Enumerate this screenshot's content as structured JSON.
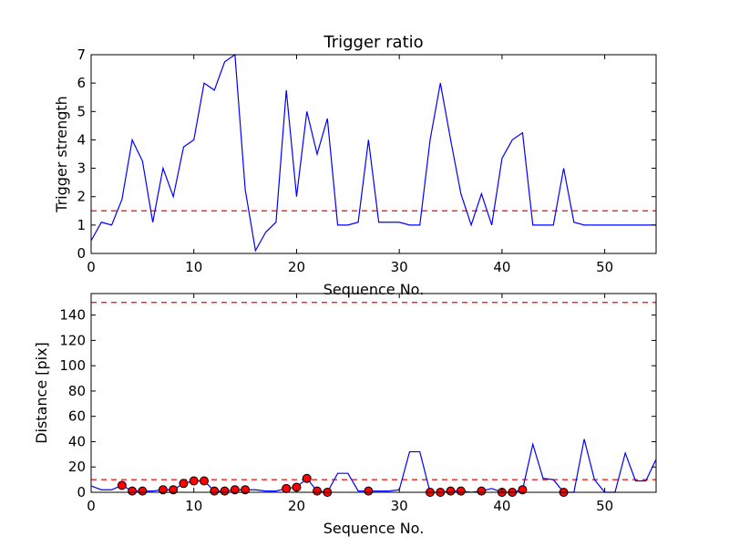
{
  "chart_data": [
    {
      "type": "line",
      "title": "Trigger ratio",
      "xlabel": "Sequence No.",
      "ylabel": "Trigger strength",
      "xlim": [
        0,
        55
      ],
      "ylim": [
        0,
        7
      ],
      "xticks": [
        0,
        10,
        20,
        30,
        40,
        50
      ],
      "yticks": [
        0,
        1,
        2,
        3,
        4,
        5,
        6,
        7
      ],
      "grid": false,
      "colors": {
        "series": "#0000ff",
        "threshold": "#ff0000"
      },
      "series": [
        {
          "x": [
            0,
            1,
            2,
            3,
            4,
            5,
            6,
            7,
            8,
            9,
            10,
            11,
            12,
            13,
            14,
            15,
            16,
            17,
            18,
            19,
            20,
            21,
            22,
            23,
            24,
            25,
            26,
            27,
            28,
            29,
            30,
            31,
            32,
            33,
            34,
            35,
            36,
            37,
            38,
            39,
            40,
            41,
            42,
            43,
            44,
            45,
            46,
            47,
            48,
            49,
            50,
            51,
            52,
            53,
            54,
            55
          ],
          "values": [
            0.45,
            1.1,
            1.0,
            1.9,
            4.0,
            3.25,
            1.1,
            3.0,
            2.0,
            3.75,
            4.0,
            6.0,
            5.75,
            6.75,
            7.0,
            2.25,
            0.1,
            0.75,
            1.1,
            5.75,
            2.0,
            5.0,
            3.5,
            4.75,
            1.0,
            1.0,
            1.1,
            4.0,
            1.1,
            1.1,
            1.1,
            1.0,
            1.0,
            4.0,
            6.0,
            4.0,
            2.1,
            1.0,
            2.1,
            1.0,
            3.35,
            4.0,
            4.25,
            1.0,
            1.0,
            1.0,
            3.0,
            1.1,
            1.0,
            1.0,
            1.0,
            1.0,
            1.0,
            1.0,
            1.0,
            1.0
          ]
        }
      ],
      "threshold": 1.5
    },
    {
      "type": "line",
      "title": "",
      "xlabel": "Sequence No.",
      "ylabel": "Distance [pix]",
      "xlim": [
        0,
        55
      ],
      "ylim": [
        0,
        157
      ],
      "xticks": [
        0,
        10,
        20,
        30,
        40,
        50
      ],
      "yticks": [
        0,
        20,
        40,
        60,
        80,
        100,
        120,
        140
      ],
      "grid": false,
      "colors": {
        "series": "#0000ff",
        "markers": "#ff0000",
        "threshold": "#ff0000"
      },
      "series": [
        {
          "x": [
            0,
            1,
            2,
            3,
            4,
            5,
            6,
            7,
            8,
            9,
            10,
            11,
            12,
            13,
            14,
            15,
            16,
            17,
            18,
            19,
            20,
            21,
            22,
            23,
            24,
            25,
            26,
            27,
            28,
            29,
            30,
            31,
            32,
            33,
            34,
            35,
            36,
            37,
            38,
            39,
            40,
            41,
            42,
            43,
            44,
            45,
            46,
            47,
            48,
            49,
            50,
            51,
            52,
            53,
            54,
            55
          ],
          "values": [
            5,
            2,
            2,
            5.5,
            1,
            1,
            1,
            2,
            2,
            7,
            9,
            9,
            1,
            1,
            2,
            2,
            2,
            1,
            1,
            3,
            4,
            11,
            1,
            0,
            15,
            15,
            1,
            1,
            1,
            1,
            2,
            32,
            32,
            0,
            0,
            1,
            1,
            0,
            1,
            3,
            0,
            0,
            2,
            38,
            11,
            10,
            0,
            0,
            42,
            10,
            0,
            0,
            31,
            9,
            9,
            26
          ]
        }
      ],
      "markers": {
        "x": [
          3,
          4,
          5,
          7,
          8,
          9,
          10,
          11,
          12,
          13,
          14,
          15,
          19,
          20,
          21,
          22,
          23,
          27,
          33,
          34,
          35,
          36,
          38,
          40,
          41,
          42,
          46
        ],
        "y": [
          5.5,
          1,
          1,
          2,
          2,
          7,
          9,
          9,
          1,
          1,
          2,
          2,
          3,
          4,
          11,
          1,
          0,
          1,
          0,
          0,
          1,
          1,
          1,
          0,
          0,
          2,
          0
        ]
      },
      "thresholds": [
        150,
        10
      ]
    }
  ]
}
